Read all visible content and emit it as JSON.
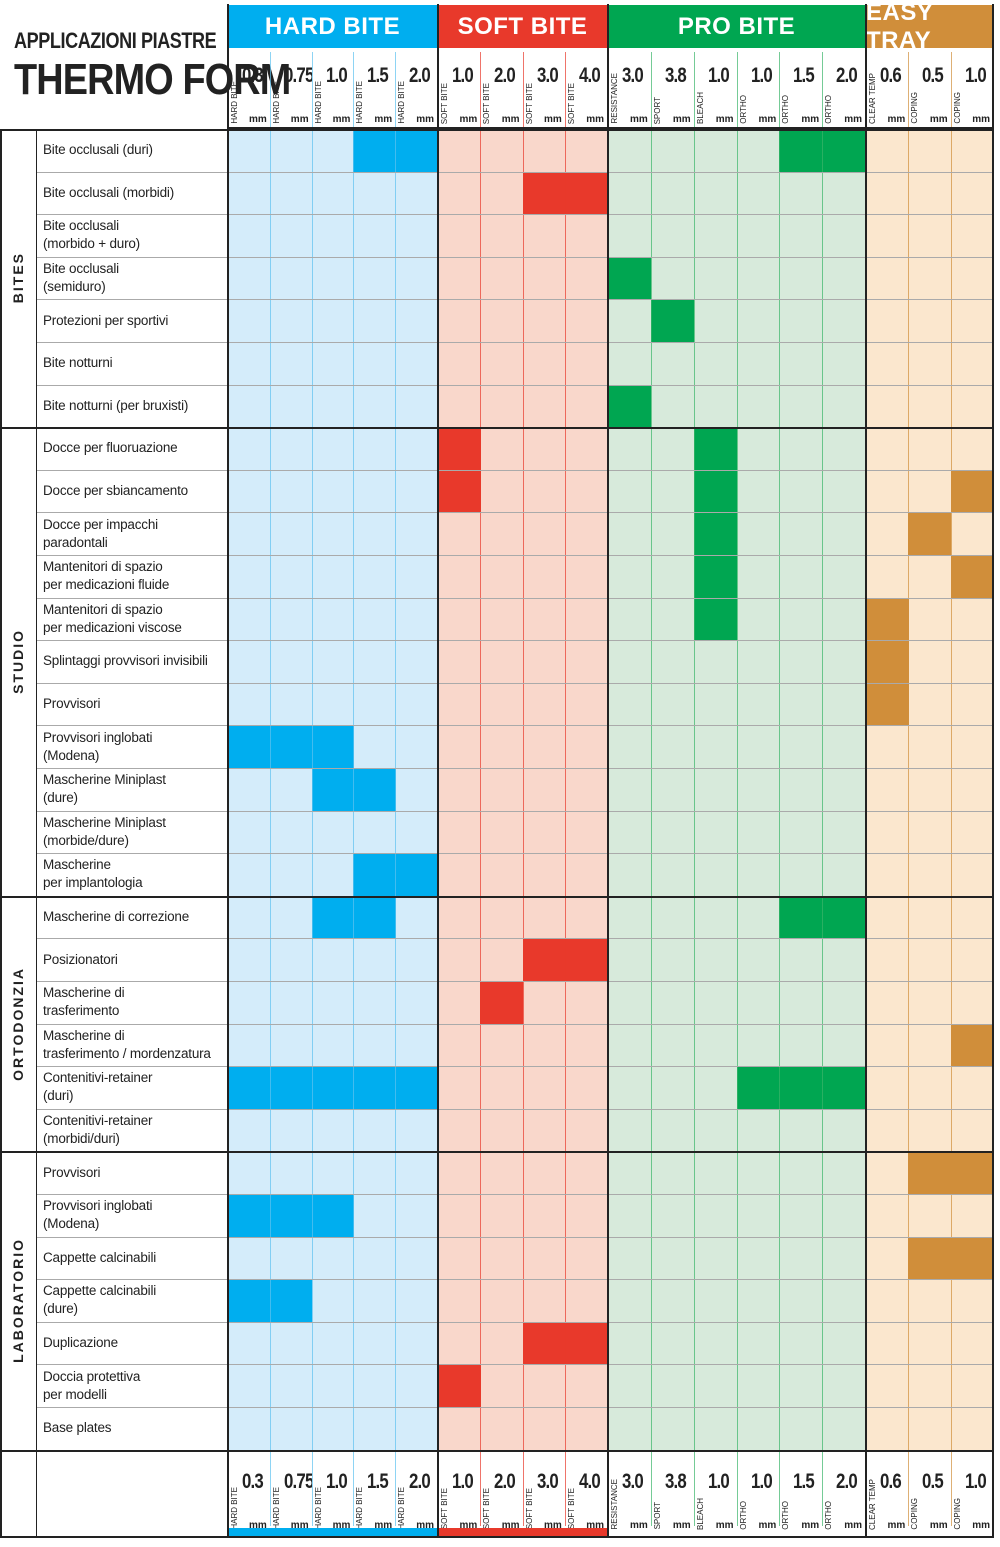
{
  "title": {
    "line1": "APPLICAZIONI PIASTRE",
    "line2": "THERMO FORM"
  },
  "groups": [
    {
      "name": "HARD BITE",
      "color": "#00aeef",
      "light": "#d4ecfa",
      "line": "#5ec2f0"
    },
    {
      "name": "SOFT BITE",
      "color": "#e8392b",
      "light": "#f9d7cb",
      "line": "#e8392b"
    },
    {
      "name": "PRO BITE",
      "color": "#00a651",
      "light": "#d7eadb",
      "line": "#3bb56a"
    },
    {
      "name": "EASY TRAY",
      "color": "#d08e3a",
      "light": "#fbe7ce",
      "line": "#d08e3a"
    }
  ],
  "columns": [
    {
      "group": 0,
      "label": "HARD BITE",
      "value": "0.3",
      "unit": "mm"
    },
    {
      "group": 0,
      "label": "HARD BITE",
      "value": "0.75",
      "unit": "mm"
    },
    {
      "group": 0,
      "label": "HARD BITE",
      "value": "1.0",
      "unit": "mm"
    },
    {
      "group": 0,
      "label": "HARD BITE",
      "value": "1.5",
      "unit": "mm"
    },
    {
      "group": 0,
      "label": "HARD BITE",
      "value": "2.0",
      "unit": "mm"
    },
    {
      "group": 1,
      "label": "SOFT BITE",
      "value": "1.0",
      "unit": "mm"
    },
    {
      "group": 1,
      "label": "SOFT BITE",
      "value": "2.0",
      "unit": "mm"
    },
    {
      "group": 1,
      "label": "SOFT BITE",
      "value": "3.0",
      "unit": "mm"
    },
    {
      "group": 1,
      "label": "SOFT BITE",
      "value": "4.0",
      "unit": "mm"
    },
    {
      "group": 2,
      "label": "RESISTANCE",
      "value": "3.0",
      "unit": "mm"
    },
    {
      "group": 2,
      "label": "SPORT",
      "value": "3.8",
      "unit": "mm"
    },
    {
      "group": 2,
      "label": "BLEACH",
      "value": "1.0",
      "unit": "mm"
    },
    {
      "group": 2,
      "label": "ORTHO",
      "value": "1.0",
      "unit": "mm"
    },
    {
      "group": 2,
      "label": "ORTHO",
      "value": "1.5",
      "unit": "mm"
    },
    {
      "group": 2,
      "label": "ORTHO",
      "value": "2.0",
      "unit": "mm"
    },
    {
      "group": 3,
      "label": "CLEAR TEMP",
      "value": "0.6",
      "unit": "mm"
    },
    {
      "group": 3,
      "label": "COPING",
      "value": "0.5",
      "unit": "mm"
    },
    {
      "group": 3,
      "label": "COPING",
      "value": "1.0",
      "unit": "mm"
    }
  ],
  "categories": [
    {
      "name": "BITES",
      "rows": [
        {
          "label": "Bite occlusali (duri)",
          "cells": [
            3,
            4,
            13,
            14
          ]
        },
        {
          "label": "Bite occlusali (morbidi)",
          "cells": [
            7,
            8
          ]
        },
        {
          "label": "Bite occlusali\n(morbido + duro)",
          "cells": []
        },
        {
          "label": "Bite occlusali\n(semiduro)",
          "cells": [
            9
          ]
        },
        {
          "label": "Protezioni per sportivi",
          "cells": [
            10
          ]
        },
        {
          "label": "Bite notturni",
          "cells": []
        },
        {
          "label": "Bite notturni (per bruxisti)",
          "cells": [
            9
          ]
        }
      ]
    },
    {
      "name": "STUDIO",
      "rows": [
        {
          "label": "Docce per fluoruazione",
          "cells": [
            5,
            11
          ]
        },
        {
          "label": "Docce per sbiancamento",
          "cells": [
            5,
            11,
            17
          ]
        },
        {
          "label": "Docce per impacchi\nparadontali",
          "cells": [
            11,
            16
          ]
        },
        {
          "label": "Mantenitori di spazio\nper medicazioni fluide",
          "cells": [
            11,
            17
          ]
        },
        {
          "label": "Mantenitori di spazio\nper medicazioni viscose",
          "cells": [
            11,
            15
          ]
        },
        {
          "label": "Splintaggi provvisori invisibili",
          "cells": [
            15
          ]
        },
        {
          "label": "Provvisori",
          "cells": [
            15
          ]
        },
        {
          "label": "Provvisori inglobati\n(Modena)",
          "cells": [
            0,
            1,
            2
          ]
        },
        {
          "label": "Mascherine Miniplast\n(dure)",
          "cells": [
            2,
            3
          ]
        },
        {
          "label": "Mascherine Miniplast\n(morbide/dure)",
          "cells": []
        },
        {
          "label": "Mascherine\nper implantologia",
          "cells": [
            3,
            4
          ]
        }
      ]
    },
    {
      "name": "ORTODONZIA",
      "rows": [
        {
          "label": "Mascherine di correzione",
          "cells": [
            2,
            3,
            13,
            14
          ]
        },
        {
          "label": "Posizionatori",
          "cells": [
            7,
            8
          ]
        },
        {
          "label": "Mascherine di\ntrasferimento",
          "cells": [
            6
          ]
        },
        {
          "label": "Mascherine di\ntrasferimento / mordenzatura",
          "cells": [
            17
          ]
        },
        {
          "label": "Contenitivi-retainer\n(duri)",
          "cells": [
            0,
            1,
            2,
            3,
            4,
            12,
            13,
            14
          ]
        },
        {
          "label": "Contenitivi-retainer\n(morbidi/duri)",
          "cells": []
        }
      ]
    },
    {
      "name": "LABORATORIO",
      "rows": [
        {
          "label": "Provvisori",
          "cells": [
            16,
            17
          ]
        },
        {
          "label": "Provvisori inglobati\n(Modena)",
          "cells": [
            0,
            1,
            2
          ]
        },
        {
          "label": "Cappette calcinabili",
          "cells": [
            16,
            17
          ]
        },
        {
          "label": "Cappette calcinabili\n(dure)",
          "cells": [
            0,
            1
          ]
        },
        {
          "label": "Duplicazione",
          "cells": [
            7,
            8
          ]
        },
        {
          "label": "Doccia protettiva\nper modelli",
          "cells": [
            5
          ]
        },
        {
          "label": "Base plates",
          "cells": []
        }
      ]
    }
  ]
}
